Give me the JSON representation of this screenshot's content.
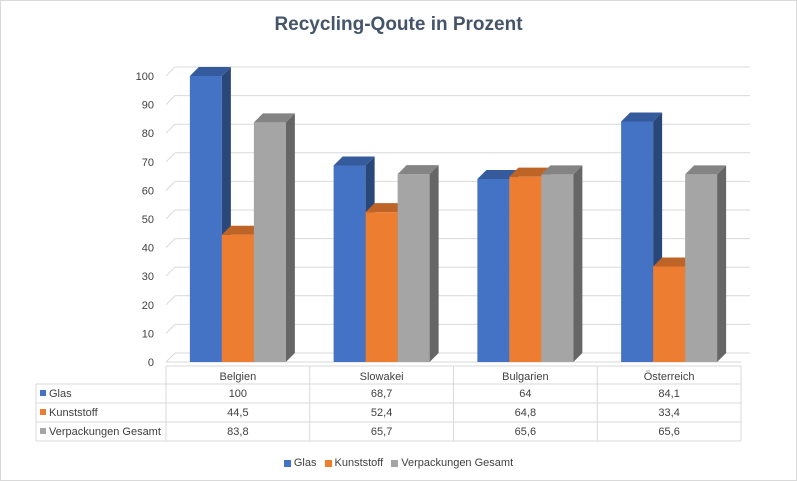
{
  "chart_data": {
    "type": "bar",
    "title": "Recycling-Qoute  in Prozent",
    "categories": [
      "Belgien",
      "Slowakei",
      "Bulgarien",
      "Österreich"
    ],
    "series": [
      {
        "name": "Glas",
        "color": "#4472c4",
        "values": [
          100,
          68.7,
          64,
          84.1
        ],
        "labels": [
          "100",
          "68,7",
          "64",
          "84,1"
        ]
      },
      {
        "name": "Kunststoff",
        "color": "#ed7d31",
        "values": [
          44.5,
          52.4,
          64.8,
          33.4
        ],
        "labels": [
          "44,5",
          "52,4",
          "64,8",
          "33,4"
        ]
      },
      {
        "name": "Verpackungen Gesamt",
        "color": "#a5a5a5",
        "values": [
          83.8,
          65.7,
          65.6,
          65.6
        ],
        "labels": [
          "83,8",
          "65,7",
          "65,6",
          "65,6"
        ]
      }
    ],
    "ylim": [
      0,
      100
    ],
    "yticks": [
      "0",
      "10",
      "20",
      "30",
      "40",
      "50",
      "60",
      "70",
      "80",
      "90",
      "100"
    ],
    "grid": true,
    "legend": "bottom",
    "data_table": true,
    "style": "3d-column"
  }
}
